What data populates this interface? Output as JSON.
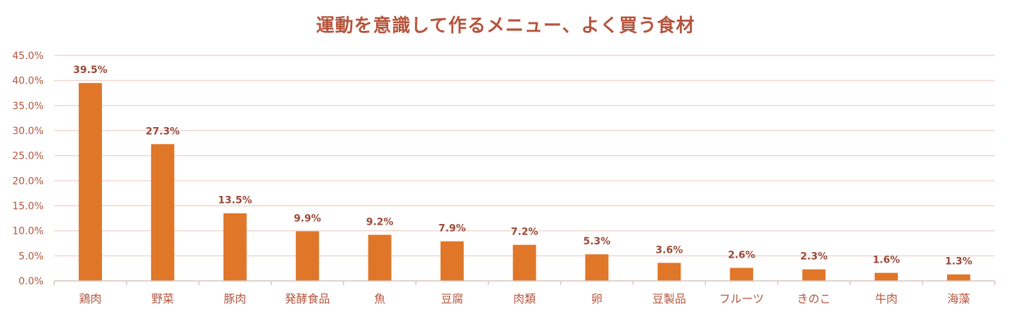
{
  "colors": {
    "bar": "#E07628",
    "title": "#B5553D",
    "axis_text": "#B5553D",
    "label": "#9A4A38",
    "grid": "#F0D5D0",
    "axis": "#D9C3BE"
  },
  "chart_data": {
    "type": "bar",
    "title": "運動を意識して作るメニュー、よく買う食材",
    "xlabel": "",
    "ylabel": "",
    "ylim": [
      0,
      45
    ],
    "y_ticks": [
      "0.0%",
      "5.0%",
      "10.0%",
      "15.0%",
      "20.0%",
      "25.0%",
      "30.0%",
      "35.0%",
      "40.0%",
      "45.0%"
    ],
    "y_tick_values": [
      0,
      5,
      10,
      15,
      20,
      25,
      30,
      35,
      40,
      45
    ],
    "grid": true,
    "legend": "none",
    "categories": [
      "鶏肉",
      "野菜",
      "豚肉",
      "発酵食品",
      "魚",
      "豆腐",
      "肉類",
      "卵",
      "豆製品",
      "フルーツ",
      "きのこ",
      "牛肉",
      "海藻"
    ],
    "values": [
      39.5,
      27.3,
      13.5,
      9.9,
      9.2,
      7.9,
      7.2,
      5.3,
      3.6,
      2.6,
      2.3,
      1.6,
      1.3
    ],
    "data_labels": [
      "39.5%",
      "27.3%",
      "13.5%",
      "9.9%",
      "9.2%",
      "7.9%",
      "7.2%",
      "5.3%",
      "3.6%",
      "2.6%",
      "2.3%",
      "1.6%",
      "1.3%"
    ]
  }
}
